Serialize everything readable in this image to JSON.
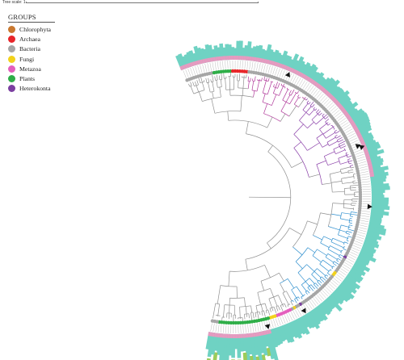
{
  "header": {
    "scale_label": "Tree scale: 1"
  },
  "legend": {
    "title": "GROUPS",
    "items": [
      {
        "label": "Chlorophyta",
        "color": "#c9782f"
      },
      {
        "label": "Archaea",
        "color": "#e8262a"
      },
      {
        "label": "Bacteria",
        "color": "#a6a6a6"
      },
      {
        "label": "Fungi",
        "color": "#f2d21b"
      },
      {
        "label": "Metazoa",
        "color": "#e45fbd"
      },
      {
        "label": "Plants",
        "color": "#2fae48"
      },
      {
        "label": "Heterokonta",
        "color": "#7b3fa0"
      }
    ]
  },
  "colors": {
    "branch_default": "#8f8f8f",
    "branch_metazoa_clade": "#b0399a",
    "branch_heterokont_clade": "#8a3fa8",
    "branch_blue_clade": "#2f8fce",
    "bar_main": "#6fd2c3",
    "bar_accent": "#9ccc5a",
    "bar_pink": "#e79ac0",
    "marker": "#111111"
  }
}
